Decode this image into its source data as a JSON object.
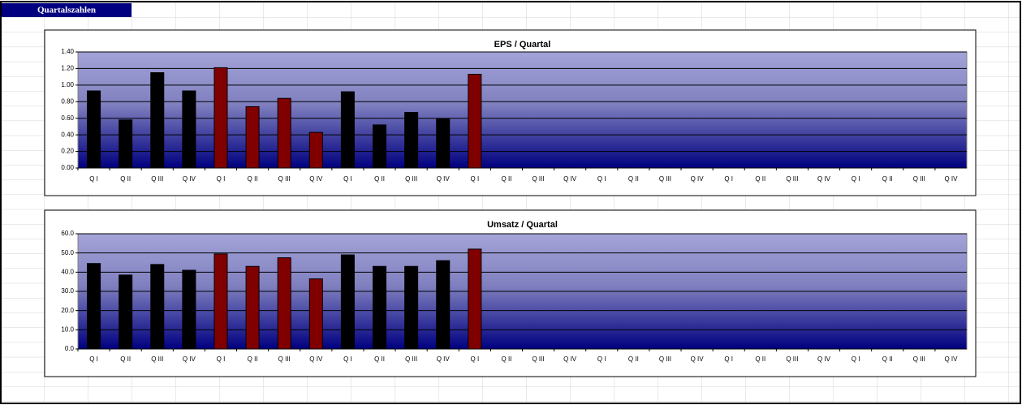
{
  "header": "Quartalszahlen",
  "chart_data": [
    {
      "type": "bar",
      "title": "EPS / Quartal",
      "categories": [
        "Q I",
        "Q II",
        "Q III",
        "Q IV",
        "Q I",
        "Q II",
        "Q III",
        "Q IV",
        "Q I",
        "Q II",
        "Q III",
        "Q IV",
        "Q I",
        "Q II",
        "Q III",
        "Q IV",
        "Q I",
        "Q II",
        "Q III",
        "Q IV",
        "Q I",
        "Q II",
        "Q III",
        "Q IV",
        "Q I",
        "Q II",
        "Q III",
        "Q IV"
      ],
      "values": [
        0.93,
        0.58,
        1.15,
        0.93,
        1.21,
        0.74,
        0.84,
        0.43,
        0.92,
        0.52,
        0.67,
        0.59,
        1.13,
        null,
        null,
        null,
        null,
        null,
        null,
        null,
        null,
        null,
        null,
        null,
        null,
        null,
        null,
        null
      ],
      "colors": [
        "#000000",
        "#000000",
        "#000000",
        "#000000",
        "#800000",
        "#800000",
        "#800000",
        "#800000",
        "#000000",
        "#000000",
        "#000000",
        "#000000",
        "#800000",
        "#800000",
        "#800000",
        "#800000",
        "#000000",
        "#000000",
        "#000000",
        "#000000",
        "#800000",
        "#800000",
        "#800000",
        "#800000",
        "#000000",
        "#000000",
        "#000000",
        "#000000"
      ],
      "ylim": [
        0,
        1.4
      ],
      "yticks": [
        {
          "value": 0,
          "label": "0.00"
        },
        {
          "value": 0.2,
          "label": "0.20"
        },
        {
          "value": 0.4,
          "label": "0.40"
        },
        {
          "value": 0.6,
          "label": "0.60"
        },
        {
          "value": 0.8,
          "label": "0.80"
        },
        {
          "value": 1,
          "label": "1.00"
        },
        {
          "value": 1.2,
          "label": "1.20"
        },
        {
          "value": 1.4,
          "label": "1.40"
        }
      ],
      "grid": true
    },
    {
      "type": "bar",
      "title": "Umsatz / Quartal",
      "categories": [
        "Q I",
        "Q II",
        "Q III",
        "Q IV",
        "Q I",
        "Q II",
        "Q III",
        "Q IV",
        "Q I",
        "Q II",
        "Q III",
        "Q IV",
        "Q I",
        "Q II",
        "Q III",
        "Q IV",
        "Q I",
        "Q II",
        "Q III",
        "Q IV",
        "Q I",
        "Q II",
        "Q III",
        "Q IV",
        "Q I",
        "Q II",
        "Q III",
        "Q IV"
      ],
      "values": [
        44.5,
        38.5,
        44,
        41,
        49.5,
        43,
        47.5,
        36.5,
        49,
        43,
        43,
        46,
        52,
        null,
        null,
        null,
        null,
        null,
        null,
        null,
        null,
        null,
        null,
        null,
        null,
        null,
        null,
        null
      ],
      "colors": [
        "#000000",
        "#000000",
        "#000000",
        "#000000",
        "#800000",
        "#800000",
        "#800000",
        "#800000",
        "#000000",
        "#000000",
        "#000000",
        "#000000",
        "#800000",
        "#800000",
        "#800000",
        "#800000",
        "#000000",
        "#000000",
        "#000000",
        "#000000",
        "#800000",
        "#800000",
        "#800000",
        "#800000",
        "#000000",
        "#000000",
        "#000000",
        "#000000"
      ],
      "ylim": [
        0,
        60
      ],
      "yticks": [
        {
          "value": 0,
          "label": "0.0"
        },
        {
          "value": 10,
          "label": "10.0"
        },
        {
          "value": 20,
          "label": "20.0"
        },
        {
          "value": 30,
          "label": "30.0"
        },
        {
          "value": 40,
          "label": "40.0"
        },
        {
          "value": 50,
          "label": "50.0"
        },
        {
          "value": 60,
          "label": "60.0"
        }
      ],
      "grid": true
    }
  ]
}
